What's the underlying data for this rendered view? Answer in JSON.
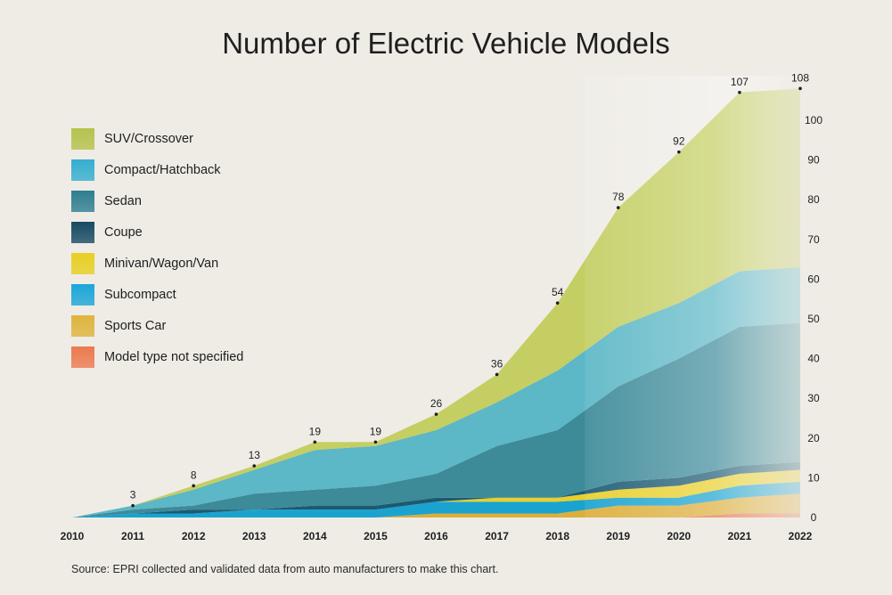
{
  "chart_data": {
    "type": "area",
    "title": "Number of Electric Vehicle Models",
    "source": "Source: EPRI collected and validated data from auto manufacturers to make this chart.",
    "x": [
      2010,
      2011,
      2012,
      2013,
      2014,
      2015,
      2016,
      2017,
      2018,
      2019,
      2020,
      2021,
      2022
    ],
    "x_tick_labels": [
      "2010",
      "2011",
      "2012",
      "2013",
      "2014",
      "2015",
      "2016",
      "2017",
      "2018",
      "2019",
      "2020",
      "2021",
      "2022"
    ],
    "ylim": [
      0,
      110
    ],
    "y_ticks": [
      0,
      10,
      20,
      30,
      40,
      50,
      60,
      70,
      80,
      90,
      100
    ],
    "y_axis_side": "right",
    "stacked": true,
    "projection_from": 2018.45,
    "series": [
      {
        "name": "Model type not specified",
        "color": "#e8734a",
        "values": [
          0,
          0,
          0,
          0,
          0,
          0,
          0,
          0,
          0,
          0,
          0,
          1,
          1
        ]
      },
      {
        "name": "Sports Car",
        "color": "#dcae3a",
        "values": [
          0,
          0,
          0,
          0,
          0,
          0,
          1,
          1,
          1,
          3,
          3,
          4,
          5
        ]
      },
      {
        "name": "Subcompact",
        "color": "#1aa3cf",
        "values": [
          0,
          1,
          1,
          2,
          2,
          2,
          3,
          3,
          3,
          2,
          2,
          3,
          3
        ]
      },
      {
        "name": "Minivan/Wagon/Van",
        "color": "#e8cf2a",
        "values": [
          0,
          0,
          0,
          0,
          0,
          0,
          0,
          1,
          1,
          2,
          3,
          3,
          3
        ]
      },
      {
        "name": "Coupe",
        "color": "#1c5a72",
        "values": [
          0,
          0,
          1,
          0,
          1,
          1,
          1,
          0,
          0,
          2,
          2,
          2,
          2
        ]
      },
      {
        "name": "Sedan",
        "color": "#3d8a99",
        "values": [
          0,
          1,
          1,
          4,
          4,
          5,
          6,
          13,
          17,
          24,
          30,
          35,
          35
        ]
      },
      {
        "name": "Compact/Hatchback",
        "color": "#5cb7c6",
        "values": [
          0,
          1,
          4,
          6,
          10,
          10,
          11,
          11,
          15,
          15,
          14,
          14,
          14
        ]
      },
      {
        "name": "SUV/Crossover",
        "color": "#c4ce62",
        "values": [
          0,
          0,
          1,
          1,
          2,
          1,
          4,
          7,
          17,
          30,
          38,
          45,
          45
        ]
      }
    ],
    "totals": [
      0,
      3,
      8,
      13,
      19,
      19,
      26,
      36,
      54,
      78,
      92,
      107,
      108
    ],
    "total_labels": [
      "",
      "3",
      "8",
      "13",
      "19",
      "19",
      "26",
      "36",
      "54",
      "78",
      "92",
      "107",
      "108"
    ],
    "legend": [
      {
        "label": "SUV/Crossover",
        "color": "#b6c24d"
      },
      {
        "label": "Compact/Hatchback",
        "color": "#35aed0"
      },
      {
        "label": "Sedan",
        "color": "#2f7e90"
      },
      {
        "label": "Coupe",
        "color": "#174a63"
      },
      {
        "label": "Minivan/Wagon/Van",
        "color": "#e8cf22"
      },
      {
        "label": "Subcompact",
        "color": "#1ba6d8"
      },
      {
        "label": "Sports Car",
        "color": "#dfb43c"
      },
      {
        "label": "Model type not specified",
        "color": "#ec7a4f"
      }
    ]
  }
}
